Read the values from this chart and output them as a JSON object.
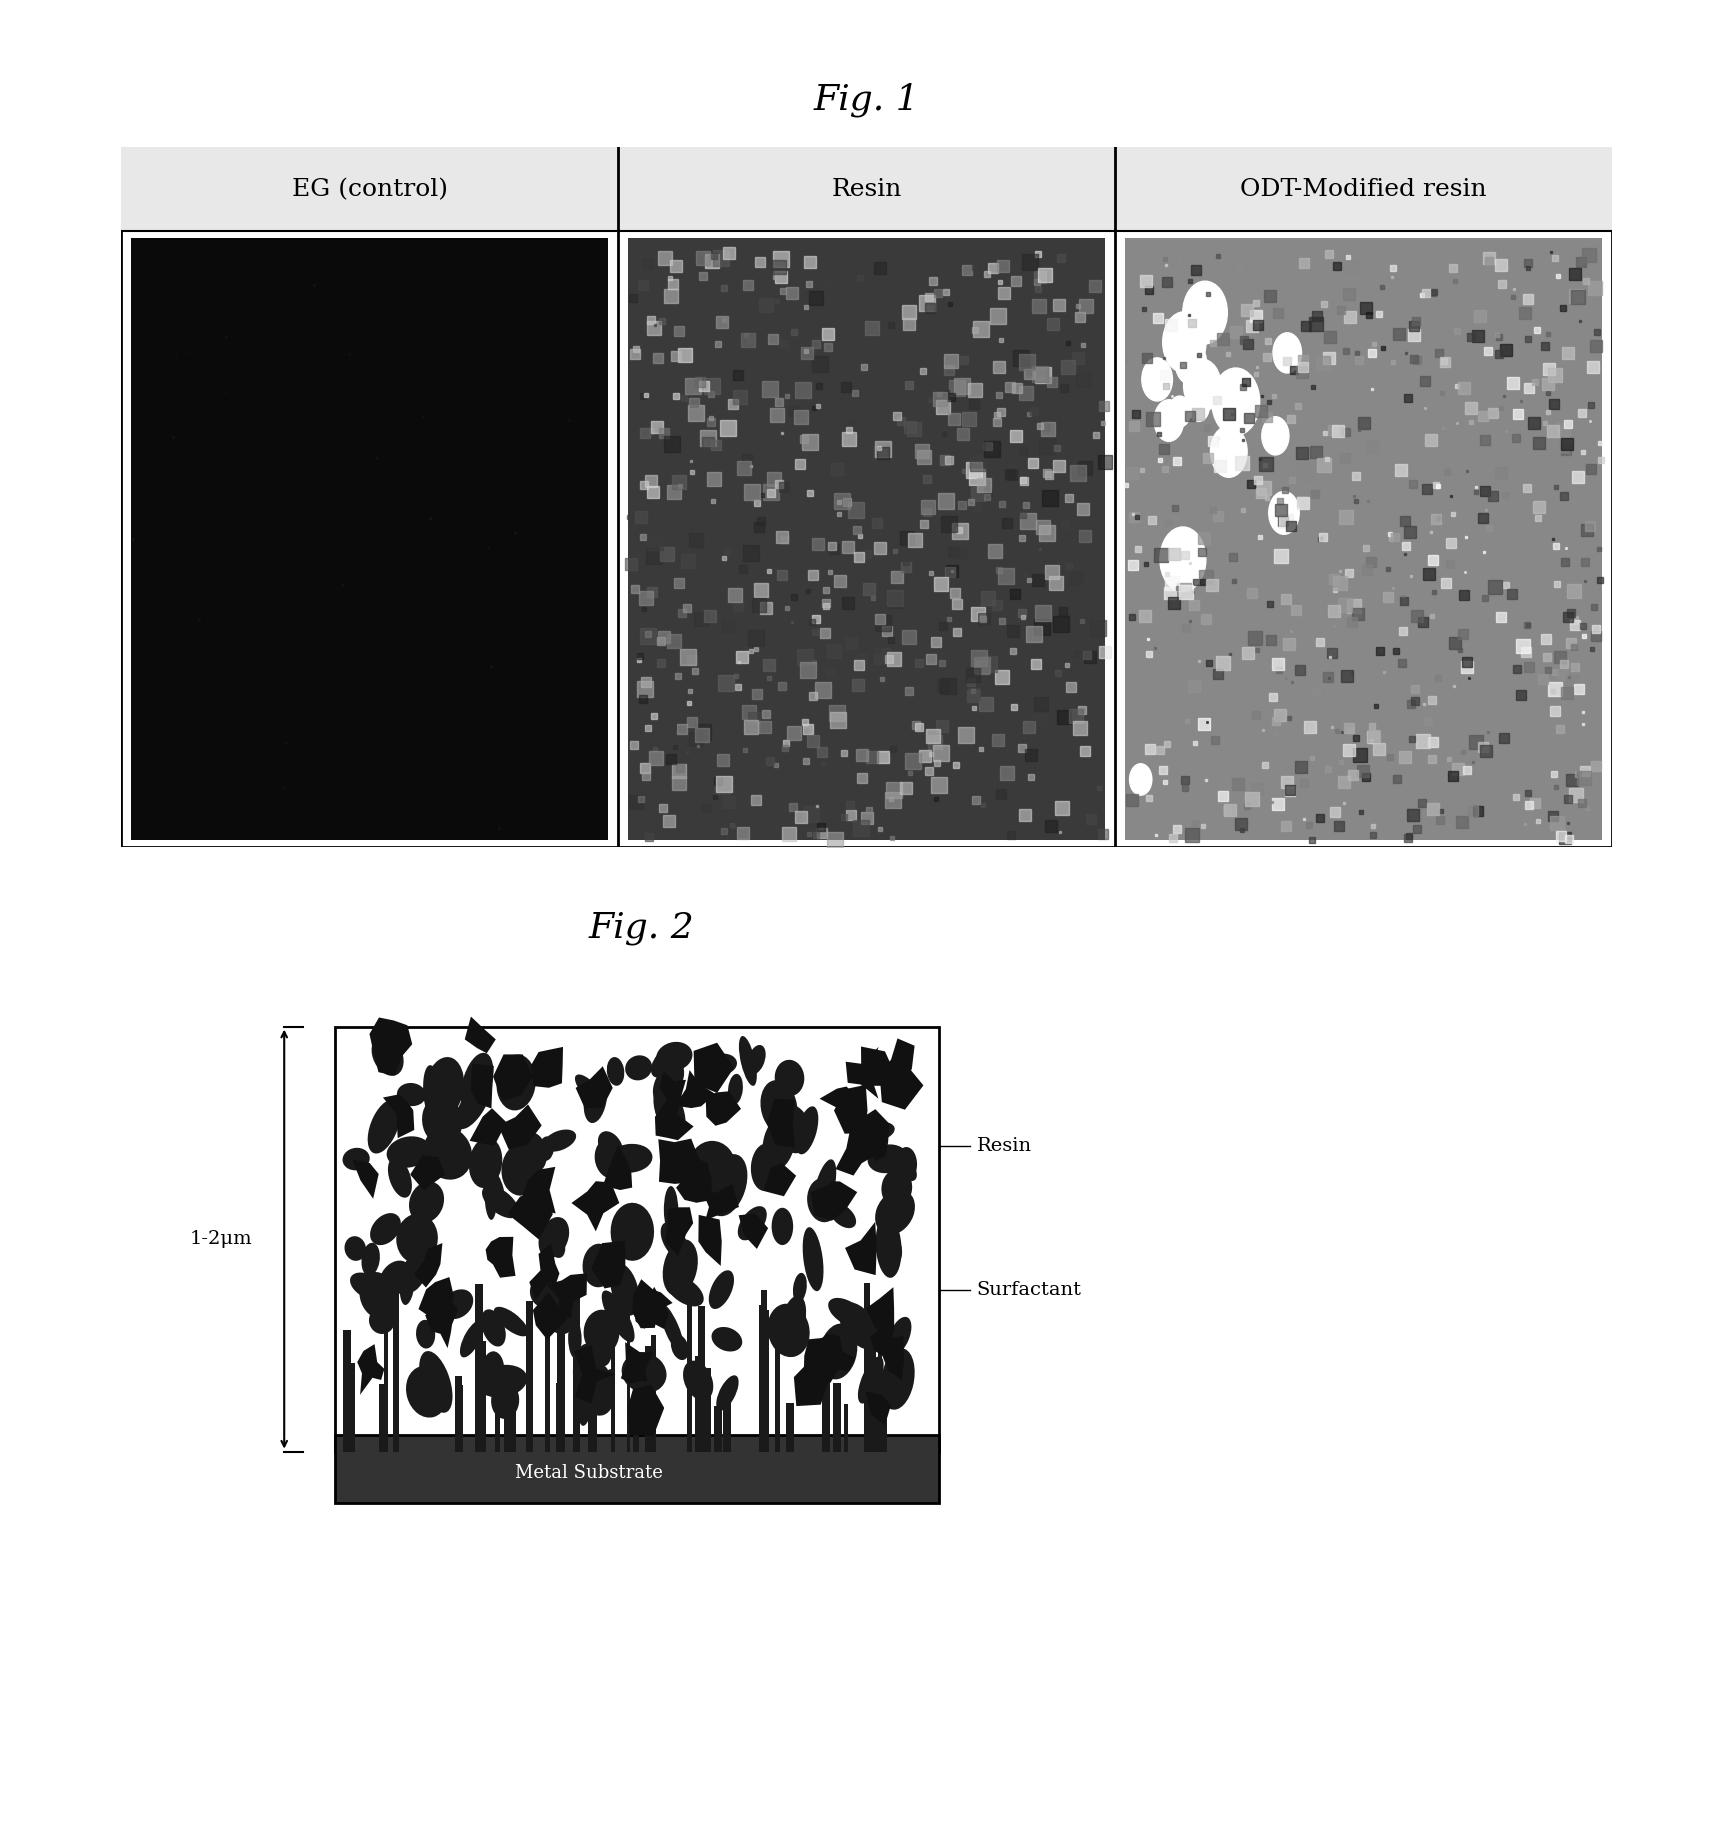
{
  "fig1_title": "Fig. 1",
  "fig2_title": "Fig. 2",
  "col1_label": "EG (control)",
  "col2_label": "Resin",
  "col3_label": "ODT-Modified resin",
  "fig2_left_label": "1-2μm",
  "fig2_right_label1": "Resin",
  "fig2_right_label2": "Surfactant",
  "fig2_bottom_label": "Metal Substrate",
  "bg_color": "#ffffff",
  "border_color": "#000000",
  "title_fontsize": 26,
  "label_fontsize": 18,
  "annotation_fontsize": 16
}
